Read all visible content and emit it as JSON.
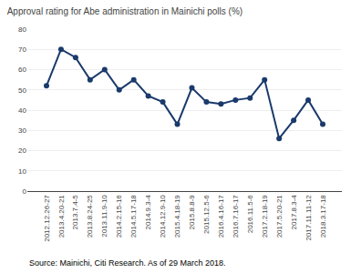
{
  "chart_data": {
    "type": "line",
    "title": "Approval rating for Abe administration in Mainichi polls (%)",
    "categories": [
      "2012.12.26-27",
      "2013.4.20-21",
      "2013.7.4-5",
      "2013.8.24-25",
      "2013.11.9-10",
      "2014.2.15-16",
      "2014.5.17-18",
      "2014.9.3-4",
      "2014.12.9-10",
      "2015.4.18-19",
      "2015.8.8-9",
      "2015.12.5-6",
      "2016.4.16-17",
      "2016.7.16-17",
      "2016.11.5-6",
      "2017.2.18-19",
      "2017.5.20-21",
      "2017.8.3-4",
      "2017.11.11-12",
      "2018.3.17-18"
    ],
    "values": [
      52,
      70,
      66,
      55,
      60,
      50,
      55,
      47,
      44,
      33,
      51,
      44,
      43,
      45,
      46,
      55,
      26,
      35,
      45,
      33
    ],
    "color": "#1a3a6b",
    "marker": "circle",
    "ylim": [
      0,
      80
    ],
    "yticks": [
      0,
      10,
      20,
      30,
      40,
      50,
      60,
      70,
      80
    ],
    "grid": true,
    "annotations": [
      "Source: Mainichi, Citi Research. As of 29 March 2018."
    ]
  }
}
